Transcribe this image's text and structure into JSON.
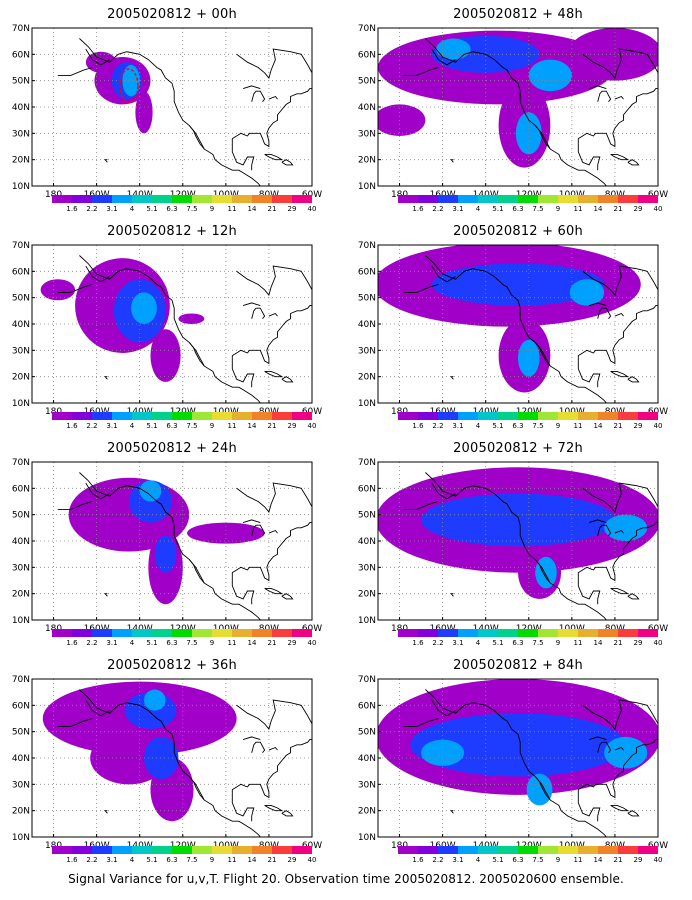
{
  "figure": {
    "caption": "Signal Variance for u,v,T. Flight 20. Observation time 2005020812. 2005020600 ensemble."
  },
  "axes": {
    "lat_labels": [
      "10N",
      "20N",
      "30N",
      "40N",
      "50N",
      "60N",
      "70N"
    ],
    "lon_labels": [
      "180",
      "160W",
      "140W",
      "120W",
      "100W",
      "80W",
      "60W"
    ],
    "lon_range": [
      -190,
      -60
    ],
    "lat_range": [
      10,
      70
    ]
  },
  "colorbar": {
    "levels": [
      "1.6",
      "2.2",
      "3.1",
      "4",
      "5.1",
      "6.3",
      "7.5",
      "9",
      "11",
      "14",
      "21",
      "29",
      "40"
    ],
    "colors": [
      "#a000c8",
      "#8200dc",
      "#1e3cff",
      "#00a0ff",
      "#00c8c8",
      "#00d28c",
      "#00dc00",
      "#a0e632",
      "#e6dc32",
      "#e6af2d",
      "#f08228",
      "#fa3c3c",
      "#f00082"
    ]
  },
  "panels": [
    {
      "title": "2005020812 + 00h",
      "forecast_hour": 0,
      "obs_marker": {
        "lon": -145,
        "lat": 48,
        "color": "#ff0000"
      },
      "blobs": [
        {
          "lon": -148,
          "lat": 50,
          "r_lon": 13,
          "r_lat": 9,
          "level": 0
        },
        {
          "lon": -158,
          "lat": 57,
          "r_lon": 7,
          "r_lat": 4,
          "level": 0
        },
        {
          "lon": -138,
          "lat": 38,
          "r_lon": 4,
          "r_lat": 8,
          "level": 0
        },
        {
          "lon": -146,
          "lat": 50,
          "r_lon": 7,
          "r_lat": 7,
          "level": 1
        },
        {
          "lon": -144,
          "lat": 50,
          "r_lon": 4,
          "r_lat": 6,
          "level": 2
        }
      ]
    },
    {
      "title": "2005020812 + 48h",
      "forecast_hour": 48,
      "blobs": [
        {
          "lon": -135,
          "lat": 55,
          "r_lon": 55,
          "r_lat": 14,
          "level": 0
        },
        {
          "lon": -122,
          "lat": 33,
          "r_lon": 12,
          "r_lat": 16,
          "level": 0
        },
        {
          "lon": -180,
          "lat": 35,
          "r_lon": 12,
          "r_lat": 6,
          "level": 0
        },
        {
          "lon": -80,
          "lat": 60,
          "r_lon": 22,
          "r_lat": 10,
          "level": 0
        },
        {
          "lon": -140,
          "lat": 60,
          "r_lon": 25,
          "r_lat": 7,
          "level": 1
        },
        {
          "lon": -120,
          "lat": 30,
          "r_lon": 6,
          "r_lat": 8,
          "level": 2
        },
        {
          "lon": -110,
          "lat": 52,
          "r_lon": 10,
          "r_lat": 6,
          "level": 2
        },
        {
          "lon": -155,
          "lat": 62,
          "r_lon": 8,
          "r_lat": 4,
          "level": 2
        }
      ]
    },
    {
      "title": "2005020812 + 12h",
      "forecast_hour": 12,
      "blobs": [
        {
          "lon": -148,
          "lat": 47,
          "r_lon": 22,
          "r_lat": 18,
          "level": 0
        },
        {
          "lon": -128,
          "lat": 28,
          "r_lon": 7,
          "r_lat": 10,
          "level": 0
        },
        {
          "lon": -178,
          "lat": 53,
          "r_lon": 8,
          "r_lat": 4,
          "level": 0
        },
        {
          "lon": -116,
          "lat": 42,
          "r_lon": 6,
          "r_lat": 2,
          "level": 0
        },
        {
          "lon": -140,
          "lat": 45,
          "r_lon": 12,
          "r_lat": 12,
          "level": 1
        },
        {
          "lon": -138,
          "lat": 46,
          "r_lon": 6,
          "r_lat": 6,
          "level": 2
        }
      ]
    },
    {
      "title": "2005020812 + 60h",
      "forecast_hour": 60,
      "blobs": [
        {
          "lon": -130,
          "lat": 55,
          "r_lon": 62,
          "r_lat": 16,
          "level": 0
        },
        {
          "lon": -122,
          "lat": 28,
          "r_lon": 12,
          "r_lat": 14,
          "level": 0
        },
        {
          "lon": -125,
          "lat": 55,
          "r_lon": 40,
          "r_lat": 8,
          "level": 1
        },
        {
          "lon": -120,
          "lat": 27,
          "r_lon": 5,
          "r_lat": 7,
          "level": 2
        },
        {
          "lon": -93,
          "lat": 52,
          "r_lon": 8,
          "r_lat": 5,
          "level": 2
        }
      ]
    },
    {
      "title": "2005020812 + 24h",
      "forecast_hour": 24,
      "blobs": [
        {
          "lon": -145,
          "lat": 50,
          "r_lon": 28,
          "r_lat": 14,
          "level": 0
        },
        {
          "lon": -128,
          "lat": 30,
          "r_lon": 8,
          "r_lat": 14,
          "level": 0
        },
        {
          "lon": -100,
          "lat": 43,
          "r_lon": 18,
          "r_lat": 4,
          "level": 0
        },
        {
          "lon": -135,
          "lat": 55,
          "r_lon": 10,
          "r_lat": 8,
          "level": 1
        },
        {
          "lon": -128,
          "lat": 35,
          "r_lon": 5,
          "r_lat": 7,
          "level": 1
        },
        {
          "lon": -135,
          "lat": 59,
          "r_lon": 5,
          "r_lat": 4,
          "level": 2
        }
      ]
    },
    {
      "title": "2005020812 + 72h",
      "forecast_hour": 72,
      "blobs": [
        {
          "lon": -125,
          "lat": 48,
          "r_lon": 66,
          "r_lat": 20,
          "level": 0
        },
        {
          "lon": -115,
          "lat": 28,
          "r_lon": 10,
          "r_lat": 10,
          "level": 0
        },
        {
          "lon": -125,
          "lat": 48,
          "r_lon": 45,
          "r_lat": 10,
          "level": 1
        },
        {
          "lon": -112,
          "lat": 28,
          "r_lon": 5,
          "r_lat": 6,
          "level": 2
        },
        {
          "lon": -75,
          "lat": 45,
          "r_lon": 10,
          "r_lat": 5,
          "level": 2
        }
      ]
    },
    {
      "title": "2005020812 + 36h",
      "forecast_hour": 36,
      "blobs": [
        {
          "lon": -140,
          "lat": 55,
          "r_lon": 45,
          "r_lat": 14,
          "level": 0
        },
        {
          "lon": -125,
          "lat": 28,
          "r_lon": 10,
          "r_lat": 12,
          "level": 0
        },
        {
          "lon": -145,
          "lat": 40,
          "r_lon": 18,
          "r_lat": 10,
          "level": 0
        },
        {
          "lon": -135,
          "lat": 58,
          "r_lon": 12,
          "r_lat": 7,
          "level": 1
        },
        {
          "lon": -130,
          "lat": 40,
          "r_lon": 8,
          "r_lat": 8,
          "level": 1
        },
        {
          "lon": -133,
          "lat": 62,
          "r_lon": 5,
          "r_lat": 4,
          "level": 2
        }
      ]
    },
    {
      "title": "2005020812 + 84h",
      "forecast_hour": 84,
      "blobs": [
        {
          "lon": -125,
          "lat": 48,
          "r_lon": 66,
          "r_lat": 22,
          "level": 0
        },
        {
          "lon": -125,
          "lat": 45,
          "r_lon": 50,
          "r_lat": 12,
          "level": 1
        },
        {
          "lon": -115,
          "lat": 28,
          "r_lon": 6,
          "r_lat": 6,
          "level": 2
        },
        {
          "lon": -75,
          "lat": 42,
          "r_lon": 10,
          "r_lat": 6,
          "level": 2
        },
        {
          "lon": -160,
          "lat": 42,
          "r_lon": 10,
          "r_lat": 5,
          "level": 2
        }
      ]
    }
  ]
}
